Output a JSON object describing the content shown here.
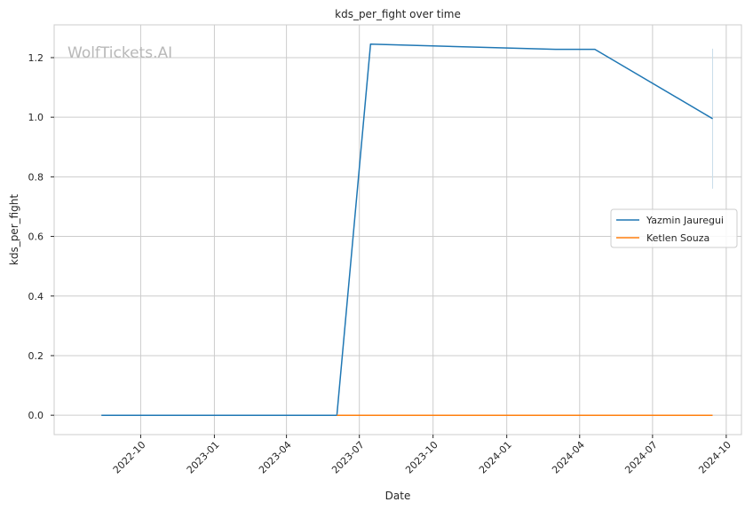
{
  "watermark": "WolfTickets.AI",
  "chart_data": {
    "type": "line",
    "title": "kds_per_fight over time",
    "xlabel": "Date",
    "ylabel": "kds_per_fight",
    "x_type": "date",
    "xlim": [
      "2022-06-15",
      "2024-10-20"
    ],
    "ylim": [
      -0.065,
      1.31
    ],
    "x_ticks": [
      "2022-10-01",
      "2023-01-01",
      "2023-04-01",
      "2023-07-01",
      "2023-10-01",
      "2024-01-01",
      "2024-04-01",
      "2024-07-01",
      "2024-10-01"
    ],
    "x_tick_labels": [
      "2022-10",
      "2023-01",
      "2023-04",
      "2023-07",
      "2023-10",
      "2024-01",
      "2024-04",
      "2024-07",
      "2024-10"
    ],
    "y_ticks": [
      0.0,
      0.2,
      0.4,
      0.6,
      0.8,
      1.0,
      1.2
    ],
    "y_tick_labels": [
      "0.0",
      "0.2",
      "0.4",
      "0.6",
      "0.8",
      "1.0",
      "1.2"
    ],
    "grid": true,
    "legend_position": "right",
    "series": [
      {
        "name": "Yazmin Jauregui",
        "color": "#1f77b4",
        "x": [
          "2022-08-13",
          "2023-06-03",
          "2023-07-15",
          "2024-03-02",
          "2024-04-20",
          "2024-09-14"
        ],
        "y": [
          0.0,
          0.0,
          1.245,
          1.228,
          1.228,
          0.995
        ]
      },
      {
        "name": "Ketlen Souza",
        "color": "#ff7f0e",
        "x": [
          "2023-06-03",
          "2024-09-14"
        ],
        "y": [
          0.0,
          0.0
        ]
      }
    ],
    "annotations": [
      {
        "type": "errorbar",
        "x": "2024-09-14",
        "y_low": 0.76,
        "y_high": 1.23,
        "color": "#c9dde9"
      }
    ]
  }
}
